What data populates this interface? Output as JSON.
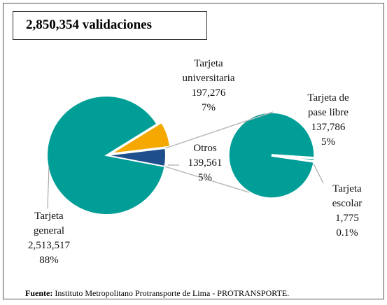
{
  "chart_data": {
    "type": "pie",
    "title": "2,850,354 validaciones",
    "categories": [
      "Tarjeta general",
      "Tarjeta universitaria",
      "Otros"
    ],
    "values": [
      2513517,
      197276,
      139561
    ],
    "value_labels": [
      "2,513,517",
      "197,276",
      "139,561"
    ],
    "percents": [
      88,
      7,
      5
    ],
    "percent_labels": [
      "88%",
      "7%",
      "5%"
    ],
    "colors": [
      "#009E96",
      "#F5A800",
      "#1F4E8C"
    ],
    "secondary": {
      "categories": [
        "Tarjeta de pase libre",
        "Tarjeta escolar"
      ],
      "values": [
        137786,
        1775
      ],
      "value_labels": [
        "137,786",
        "1,775"
      ],
      "percents": [
        5,
        0.1
      ],
      "percent_labels": [
        "5%",
        "0.1%"
      ],
      "colors": [
        "#009E96",
        "#009E96"
      ]
    },
    "source": {
      "label": "Fuente:",
      "text": "Instituto Metropolitano Protransporte de Lima - PROTRANSPORTE."
    }
  }
}
